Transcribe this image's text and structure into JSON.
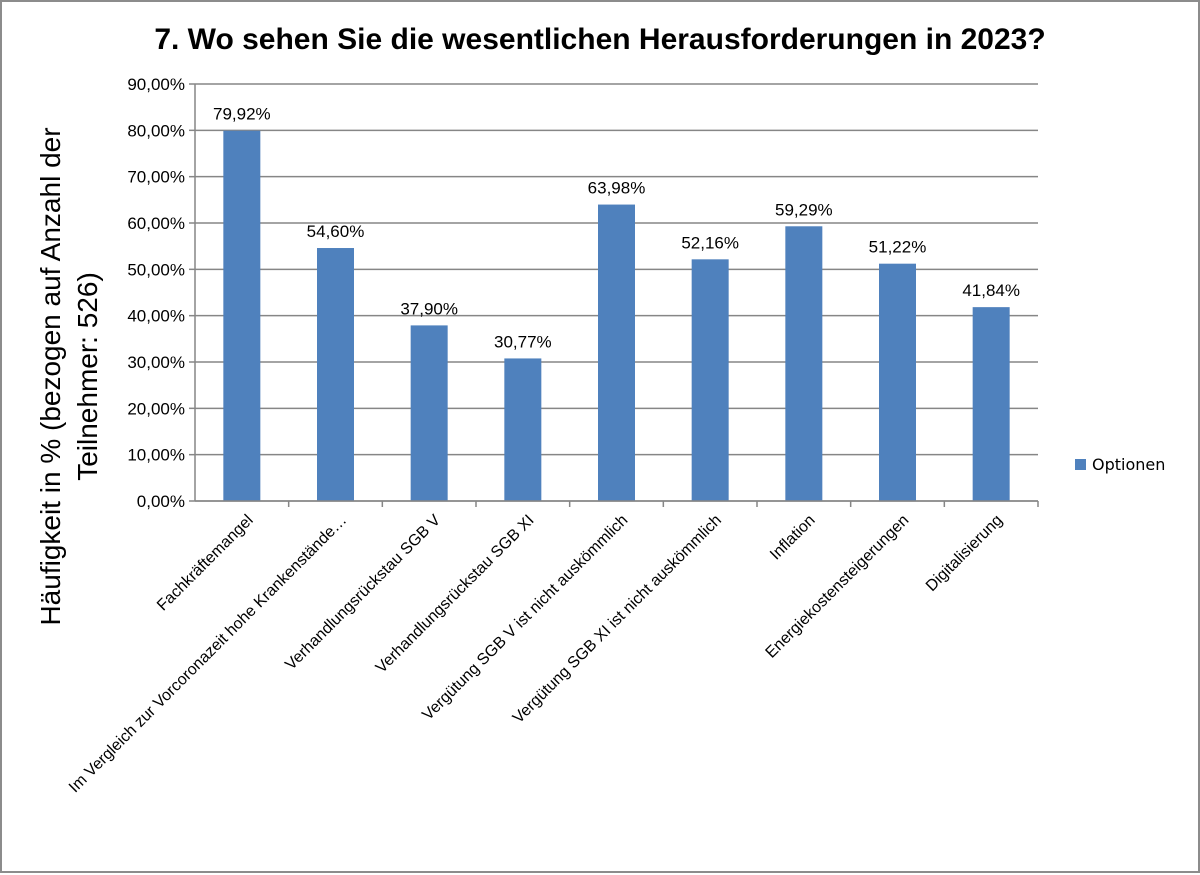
{
  "chart_data": {
    "type": "bar",
    "title": "7. Wo sehen Sie die wesentlichen Herausforderungen in 2023?",
    "xlabel": "",
    "ylabel": "Häufigkeit in % (bezogen auf Anzahl der Teilnehmer: 526)",
    "ylabel_lines": [
      "Häufigkeit in % (bezogen auf Anzahl der",
      "Teilnehmer: 526)"
    ],
    "ylim": [
      0,
      90
    ],
    "yticks": [
      0,
      10,
      20,
      30,
      40,
      50,
      60,
      70,
      80,
      90
    ],
    "ytick_labels": [
      "0,00%",
      "10,00%",
      "20,00%",
      "30,00%",
      "40,00%",
      "50,00%",
      "60,00%",
      "70,00%",
      "80,00%",
      "90,00%"
    ],
    "grid": true,
    "legend_position": "right",
    "categories": [
      "Fachkräftemangel",
      "Im Vergleich zur Vorcoronazeit hohe Krankenstände…",
      "Verhandlungsrückstau SGB V",
      "Verhandlungsrückstau SGB XI",
      "Vergütung SGB V ist nicht auskömmlich",
      "Vergütung SGB XI ist nicht auskömmlich",
      "Inflation",
      "Energiekostensteigerungen",
      "Digitalisierung"
    ],
    "series": [
      {
        "name": "Optionen",
        "color": "#4f81bd",
        "values": [
          79.92,
          54.6,
          37.9,
          30.77,
          63.98,
          52.16,
          59.29,
          51.22,
          41.84
        ],
        "value_labels": [
          "79,92%",
          "54,60%",
          "37,90%",
          "30,77%",
          "63,98%",
          "52,16%",
          "59,29%",
          "51,22%",
          "41,84%"
        ]
      }
    ]
  },
  "colors": {
    "bar": "#4f81bd",
    "gridline": "#868686",
    "text": "#000000",
    "frame": "#8c8c8c"
  }
}
